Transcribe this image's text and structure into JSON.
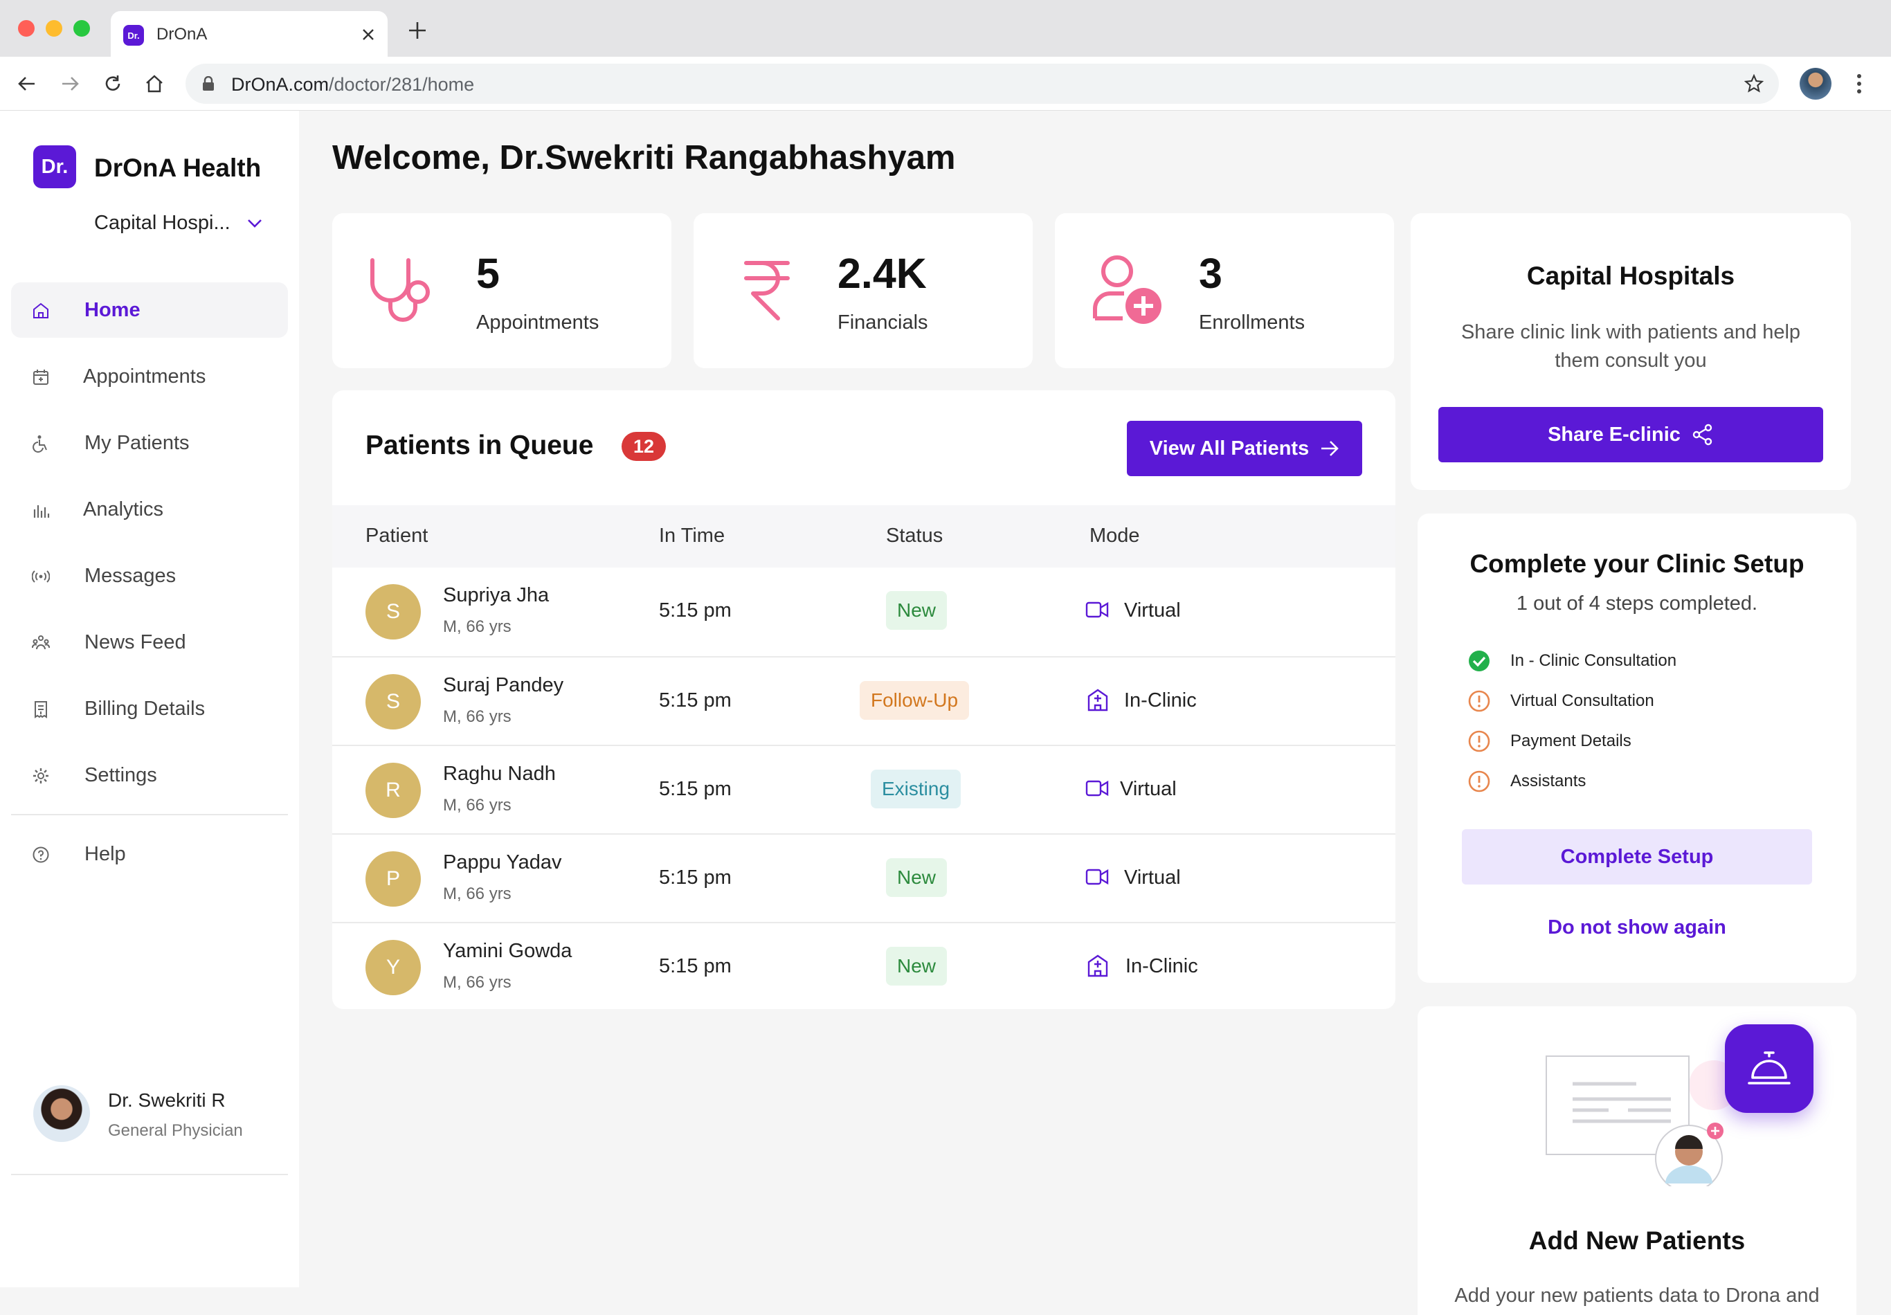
{
  "browser": {
    "tab_title": "DrOnA",
    "favicon_text": "Dr.",
    "url_host": "DrOnA.com",
    "url_path": "/doctor/281/home"
  },
  "sidebar": {
    "logo_text": "Dr.",
    "brand": "DrOnA Health",
    "clinic_selected": "Capital Hospi...",
    "items": [
      {
        "label": "Home",
        "icon": "home-icon",
        "active": true
      },
      {
        "label": "Appointments",
        "icon": "calendar-icon"
      },
      {
        "label": "My Patients",
        "icon": "wheelchair-icon"
      },
      {
        "label": "Analytics",
        "icon": "bar-chart-icon"
      },
      {
        "label": "Messages",
        "icon": "broadcast-icon"
      },
      {
        "label": "News Feed",
        "icon": "people-icon"
      },
      {
        "label": "Billing Details",
        "icon": "receipt-icon"
      },
      {
        "label": "Settings",
        "icon": "gear-icon"
      }
    ],
    "help_label": "Help",
    "user": {
      "name": "Dr. Swekriti R",
      "role": "General Physician"
    }
  },
  "main": {
    "welcome": "Welcome, Dr.Swekriti Rangabhashyam",
    "stats": [
      {
        "value": "5",
        "label": "Appointments",
        "icon": "stethoscope-icon"
      },
      {
        "value": "2.4K",
        "label": "Financials",
        "icon": "rupee-icon"
      },
      {
        "value": "3",
        "label": "Enrollments",
        "icon": "add-user-icon"
      }
    ],
    "queue": {
      "title": "Patients in Queue",
      "count": "12",
      "view_all": "View All Patients",
      "columns": [
        "Patient",
        "In Time",
        "Status",
        "Mode"
      ],
      "rows": [
        {
          "initial": "S",
          "name": "Supriya Jha",
          "meta": "M, 66 yrs",
          "time": "5:15 pm",
          "status": "New",
          "status_type": "new",
          "mode": "Virtual"
        },
        {
          "initial": "S",
          "name": "Suraj Pandey",
          "meta": "M, 66 yrs",
          "time": "5:15 pm",
          "status": "Follow-Up",
          "status_type": "follow",
          "mode": "In-Clinic"
        },
        {
          "initial": "R",
          "name": "Raghu Nadh",
          "meta": "M, 66 yrs",
          "time": "5:15 pm",
          "status": "Existing",
          "status_type": "existing",
          "mode": "Virtual"
        },
        {
          "initial": "P",
          "name": "Pappu Yadav",
          "meta": "M, 66 yrs",
          "time": "5:15 pm",
          "status": "New",
          "status_type": "new",
          "mode": "Virtual"
        },
        {
          "initial": "Y",
          "name": "Yamini Gowda",
          "meta": "M, 66 yrs",
          "time": "5:15 pm",
          "status": "New",
          "status_type": "new",
          "mode": "In-Clinic"
        }
      ]
    }
  },
  "right": {
    "share": {
      "title": "Capital Hospitals",
      "text": "Share clinic link with patients and help them consult you",
      "button": "Share E-clinic"
    },
    "setup": {
      "title": "Complete your Clinic Setup",
      "progress": "1 out of 4 steps completed.",
      "steps": [
        {
          "label": "In - Clinic Consultation",
          "done": true
        },
        {
          "label": "Virtual Consultation",
          "done": false
        },
        {
          "label": "Payment Details",
          "done": false
        },
        {
          "label": "Assistants",
          "done": false
        }
      ],
      "button": "Complete Setup",
      "dismiss": "Do not show again"
    },
    "add_patients": {
      "title": "Add New Patients",
      "text": "Add your new patients data to Drona and"
    }
  },
  "colors": {
    "accent": "#5b19d6",
    "pink": "#f06a95",
    "badge_red": "#d93838",
    "success": "#22b04b",
    "warning": "#e8864d"
  }
}
